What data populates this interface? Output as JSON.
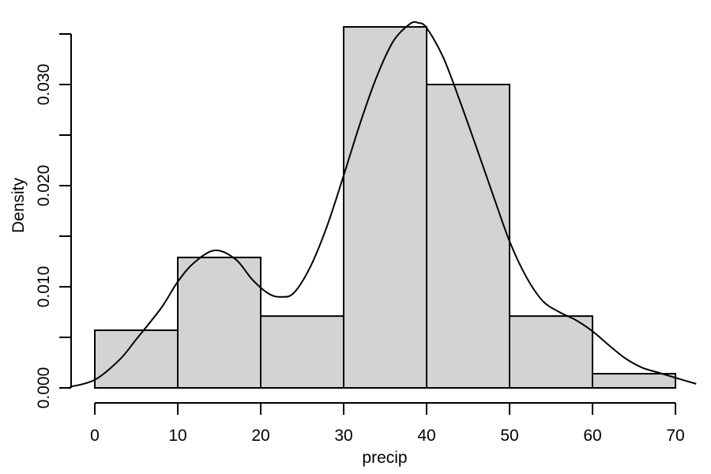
{
  "chart_data": {
    "type": "bar",
    "subtype": "histogram_with_density",
    "xlabel": "precip",
    "ylabel": "Density",
    "xlim": [
      0,
      70
    ],
    "ylim": [
      0,
      0.035
    ],
    "x_ticks": [
      {
        "value": 0,
        "label": "0"
      },
      {
        "value": 10,
        "label": "10"
      },
      {
        "value": 20,
        "label": "20"
      },
      {
        "value": 30,
        "label": "30"
      },
      {
        "value": 40,
        "label": "40"
      },
      {
        "value": 50,
        "label": "50"
      },
      {
        "value": 60,
        "label": "60"
      },
      {
        "value": 70,
        "label": "70"
      }
    ],
    "y_ticks": [
      {
        "value": 0.0,
        "label": "0.000"
      },
      {
        "value": 0.005,
        "label": ""
      },
      {
        "value": 0.01,
        "label": "0.010"
      },
      {
        "value": 0.015,
        "label": ""
      },
      {
        "value": 0.02,
        "label": "0.020"
      },
      {
        "value": 0.025,
        "label": ""
      },
      {
        "value": 0.03,
        "label": "0.030"
      },
      {
        "value": 0.035,
        "label": ""
      }
    ],
    "bins": [
      {
        "start": 0,
        "end": 10,
        "density": 0.0057
      },
      {
        "start": 10,
        "end": 20,
        "density": 0.0129
      },
      {
        "start": 20,
        "end": 30,
        "density": 0.0071
      },
      {
        "start": 30,
        "end": 40,
        "density": 0.0357
      },
      {
        "start": 40,
        "end": 50,
        "density": 0.03
      },
      {
        "start": 50,
        "end": 60,
        "density": 0.0071
      },
      {
        "start": 60,
        "end": 70,
        "density": 0.0014
      }
    ],
    "density_curve": {
      "x": [
        -3,
        0,
        3,
        5,
        8,
        10,
        12,
        14.5,
        17,
        19,
        21,
        22.5,
        24,
        26,
        28,
        30,
        32,
        34,
        36,
        38,
        39,
        40,
        42,
        44,
        46,
        48,
        50,
        52,
        54,
        56,
        58,
        60,
        62,
        64,
        66,
        68,
        70,
        72.5
      ],
      "y": [
        0.0001,
        0.0008,
        0.0028,
        0.0048,
        0.0079,
        0.0105,
        0.0124,
        0.0136,
        0.0127,
        0.0107,
        0.0093,
        0.009,
        0.0094,
        0.012,
        0.016,
        0.021,
        0.0262,
        0.0308,
        0.0343,
        0.036,
        0.0361,
        0.0356,
        0.0327,
        0.0284,
        0.0238,
        0.0191,
        0.0145,
        0.011,
        0.0086,
        0.0075,
        0.0067,
        0.0056,
        0.0042,
        0.0029,
        0.002,
        0.0015,
        0.001,
        0.0004
      ]
    },
    "bar_fill": "#d3d3d3",
    "line_color": "#000000",
    "grid": false,
    "legend": "none"
  }
}
